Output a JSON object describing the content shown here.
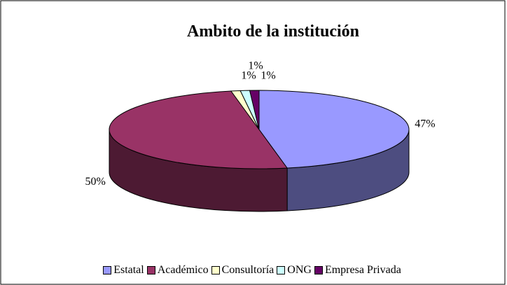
{
  "chart_data": {
    "type": "pie",
    "title": "Ambito de la institución",
    "categories": [
      "Estatal",
      "Académico",
      "Consultoría",
      "ONG",
      "Empresa Privada"
    ],
    "series": [
      {
        "name": "Ambito de la institución",
        "values": [
          47,
          50,
          1,
          1,
          1
        ],
        "value_labels": [
          "47%",
          "50%",
          "1%",
          "1%",
          "1%"
        ]
      }
    ],
    "colors": [
      "#9999ff",
      "#993366",
      "#ffffcc",
      "#ccffff",
      "#660066"
    ],
    "legend": "bottom"
  }
}
